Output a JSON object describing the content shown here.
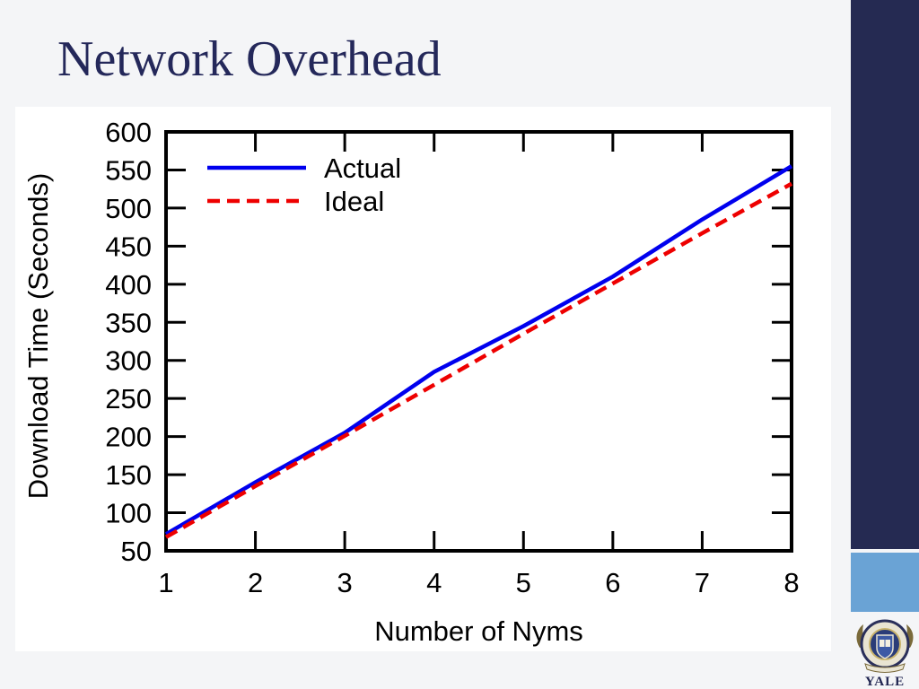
{
  "slide": {
    "title": "Network Overhead",
    "logo_label": "YALE",
    "colors": {
      "title": "#24285a",
      "band_dark": "#252a52",
      "band_light": "#6aa3d5",
      "background": "#f4f5f7"
    }
  },
  "chart_data": {
    "type": "line",
    "title": "",
    "xlabel": "Number of Nyms",
    "ylabel": "Download Time (Seconds)",
    "x": [
      1,
      2,
      3,
      4,
      5,
      6,
      7,
      8
    ],
    "xlim": [
      1,
      8
    ],
    "ylim": [
      50,
      600
    ],
    "xticks": [
      "1",
      "2",
      "3",
      "4",
      "5",
      "6",
      "7",
      "8"
    ],
    "yticks": [
      "50",
      "100",
      "150",
      "200",
      "250",
      "300",
      "350",
      "400",
      "450",
      "500",
      "550",
      "600"
    ],
    "grid": false,
    "legend_position": "top-left",
    "series": [
      {
        "name": "Actual",
        "color": "#0000ee",
        "style": "solid",
        "values": [
          72,
          140,
          205,
          285,
          345,
          410,
          485,
          555
        ]
      },
      {
        "name": "Ideal",
        "color": "#ee0000",
        "style": "dashed",
        "values": [
          68,
          135,
          201,
          268,
          335,
          401,
          467,
          532
        ]
      }
    ]
  }
}
